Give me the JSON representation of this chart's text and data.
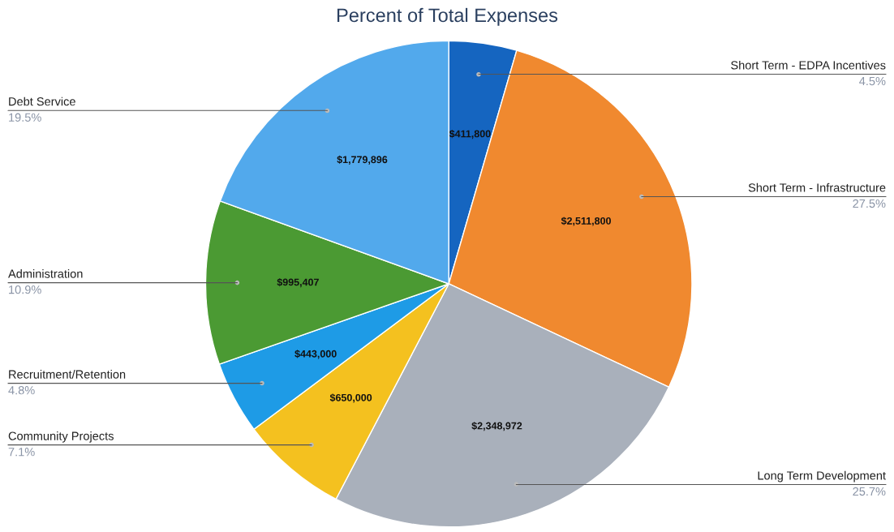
{
  "chart_data": {
    "type": "pie",
    "title": "Percent of Total Expenses",
    "categories": [
      "Short Term - EDPA Incentives",
      "Short Term - Infrastructure",
      "Long Term Development",
      "Community Projects",
      "Recruitment/Retention",
      "Administration",
      "Debt Service"
    ],
    "values": [
      411800,
      2511800,
      2348972,
      650000,
      443000,
      995407,
      1779896
    ],
    "value_labels": [
      "$411,800",
      "$2,511,800",
      "$2,348,972",
      "$650,000",
      "$443,000",
      "$995,407",
      "$1,779,896"
    ],
    "annotations": [
      "4.5%",
      "27.5%",
      "25.7%",
      "7.1%",
      "4.8%",
      "10.9%",
      "19.5%"
    ],
    "colors": [
      "#1565c0",
      "#f0892f",
      "#a9b0bb",
      "#f4c11f",
      "#1e9be6",
      "#4b9a33",
      "#52a9ec"
    ],
    "legend": false
  }
}
